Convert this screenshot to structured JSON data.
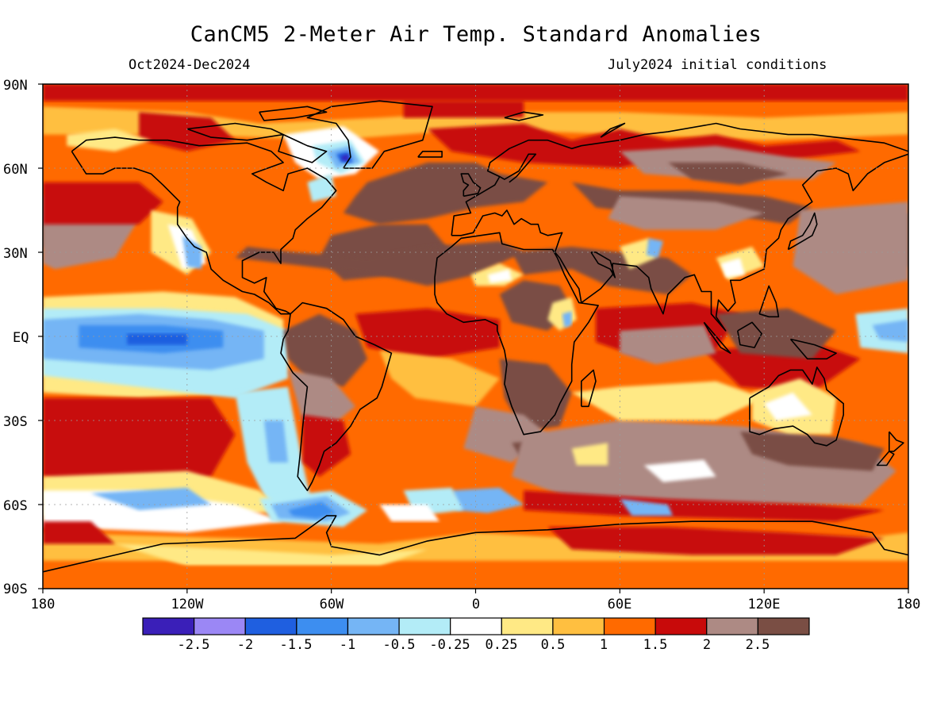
{
  "title": "CanCM5 2-Meter Air Temp. Standard Anomalies",
  "period": "Oct2024-Dec2024",
  "init": "July2024 initial conditions",
  "lat_ticks": [
    "90N",
    "60N",
    "30N",
    "EQ",
    "30S",
    "60S",
    "90S"
  ],
  "lon_ticks": [
    "180",
    "120W",
    "60W",
    "0",
    "60E",
    "120E",
    "180"
  ],
  "colorbar": {
    "colors": [
      "#3a1fb8",
      "#9b87f5",
      "#1f5fe0",
      "#3d8ef0",
      "#75b5f5",
      "#b3ecf7",
      "#ffffff",
      "#ffe985",
      "#ffbf40",
      "#ff6a00",
      "#c80a0a",
      "#ad8a84",
      "#7a4e44"
    ],
    "labels": [
      "-2.5",
      "-2",
      "-1.5",
      "-1",
      "-0.5",
      "-0.25",
      "0.25",
      "0.5",
      "1",
      "1.5",
      "2",
      "2.5"
    ]
  },
  "map_colors": {
    "base": "#ff6a00",
    "light": "#ffbf40",
    "pale": "#ffe985",
    "red": "#c80a0a",
    "mauve": "#ad8a84",
    "brown": "#7a4e44",
    "white": "#ffffff",
    "cyan": "#b3ecf7",
    "lblue": "#75b5f5",
    "mblue": "#3d8ef0",
    "dblue": "#1f5fe0",
    "violet": "#3a1fb8"
  }
}
